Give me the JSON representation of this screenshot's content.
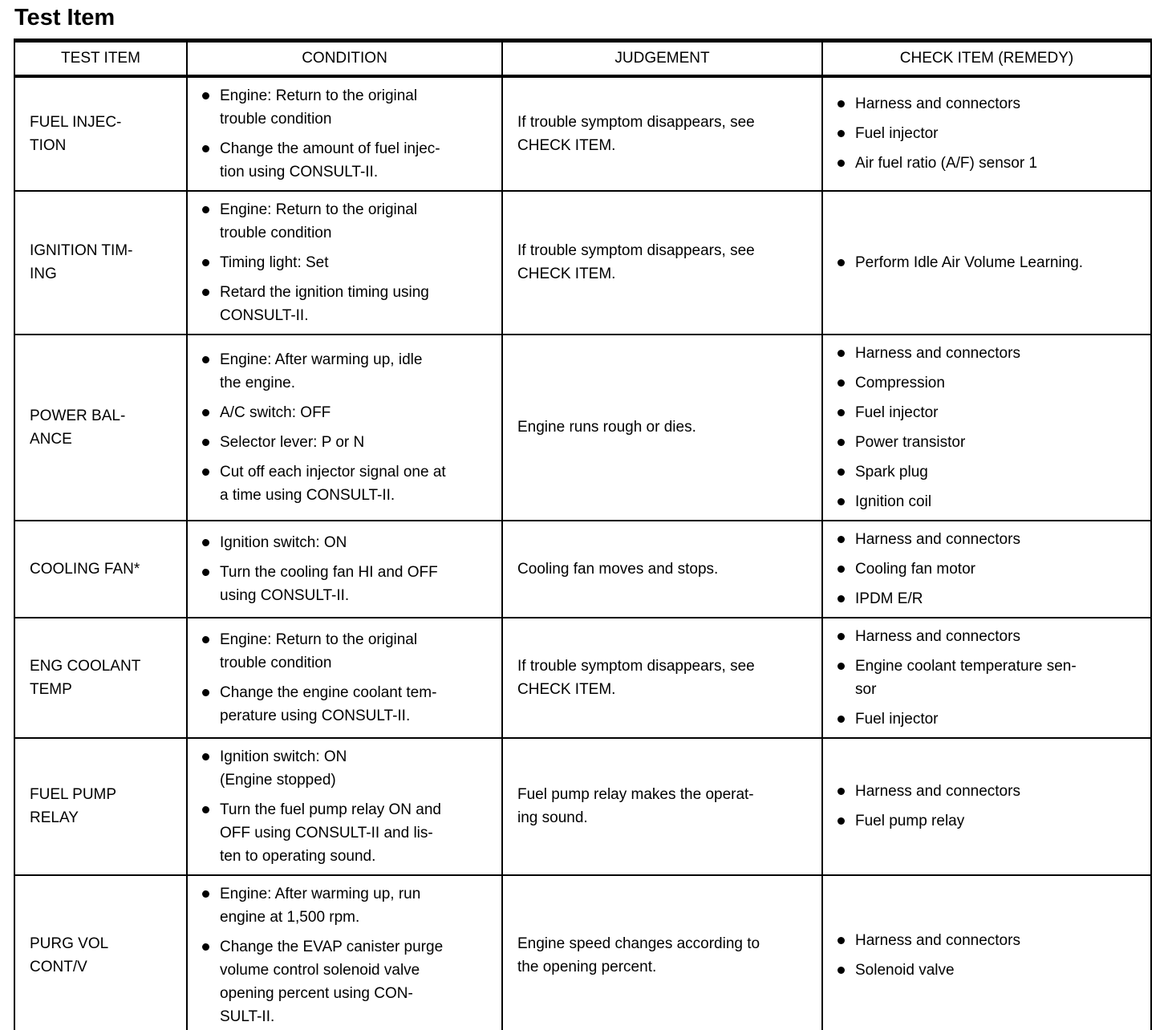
{
  "page": {
    "title": "Test Item"
  },
  "colors": {
    "text": "#000000",
    "background": "#ffffff",
    "border": "#000000"
  },
  "table": {
    "headers": [
      "TEST ITEM",
      "CONDITION",
      "JUDGEMENT",
      "CHECK ITEM (REMEDY)"
    ],
    "rows": [
      {
        "test_item": [
          "FUEL INJEC-",
          "TION"
        ],
        "conditions": [
          [
            "Engine: Return to the original",
            "trouble condition"
          ],
          [
            "Change the amount of fuel injec-",
            "tion using CONSULT-II."
          ]
        ],
        "judgement": [
          "If trouble symptom disappears, see",
          "CHECK ITEM."
        ],
        "check_items": [
          [
            "Harness and connectors"
          ],
          [
            "Fuel injector"
          ],
          [
            "Air fuel ratio (A/F) sensor 1"
          ]
        ]
      },
      {
        "test_item": [
          "IGNITION TIM-",
          "ING"
        ],
        "conditions": [
          [
            "Engine: Return to the original",
            "trouble condition"
          ],
          [
            "Timing light: Set"
          ],
          [
            "Retard the ignition timing using",
            "CONSULT-II."
          ]
        ],
        "judgement": [
          "If trouble symptom disappears, see",
          "CHECK ITEM."
        ],
        "check_items": [
          [
            "Perform Idle Air Volume Learning."
          ]
        ]
      },
      {
        "test_item": [
          "POWER BAL-",
          "ANCE"
        ],
        "conditions": [
          [
            "Engine: After warming up, idle",
            "the engine."
          ],
          [
            "A/C switch: OFF"
          ],
          [
            "Selector lever: P or N"
          ],
          [
            "Cut off each injector signal one at",
            "a time using CONSULT-II."
          ]
        ],
        "judgement": [
          "Engine runs rough or dies."
        ],
        "check_items": [
          [
            "Harness and connectors"
          ],
          [
            "Compression"
          ],
          [
            "Fuel injector"
          ],
          [
            "Power transistor"
          ],
          [
            "Spark plug"
          ],
          [
            "Ignition coil"
          ]
        ]
      },
      {
        "test_item": [
          "COOLING FAN*"
        ],
        "conditions": [
          [
            "Ignition switch: ON"
          ],
          [
            "Turn the cooling fan HI and OFF",
            "using CONSULT-II."
          ]
        ],
        "judgement": [
          "Cooling fan moves and stops."
        ],
        "check_items": [
          [
            "Harness and connectors"
          ],
          [
            "Cooling fan motor"
          ],
          [
            "IPDM E/R"
          ]
        ]
      },
      {
        "test_item": [
          "ENG COOLANT",
          "TEMP"
        ],
        "conditions": [
          [
            "Engine: Return to the original",
            "trouble condition"
          ],
          [
            "Change the engine coolant tem-",
            "perature using CONSULT-II."
          ]
        ],
        "judgement": [
          "If trouble symptom disappears, see",
          "CHECK ITEM."
        ],
        "check_items": [
          [
            "Harness and connectors"
          ],
          [
            "Engine coolant temperature sen-",
            "sor"
          ],
          [
            "Fuel injector"
          ]
        ]
      },
      {
        "test_item": [
          "FUEL PUMP",
          "RELAY"
        ],
        "conditions": [
          [
            "Ignition switch: ON",
            "(Engine stopped)"
          ],
          [
            "Turn the fuel pump relay ON and",
            "OFF using CONSULT-II and lis-",
            "ten to operating sound."
          ]
        ],
        "judgement": [
          "Fuel pump relay makes the operat-",
          "ing sound."
        ],
        "check_items": [
          [
            "Harness and connectors"
          ],
          [
            "Fuel pump relay"
          ]
        ]
      },
      {
        "test_item": [
          "PURG VOL",
          "CONT/V"
        ],
        "conditions": [
          [
            "Engine: After warming up, run",
            "engine at 1,500 rpm."
          ],
          [
            "Change the EVAP canister purge",
            "volume control solenoid valve",
            "opening percent using CON-",
            "SULT-II."
          ]
        ],
        "judgement": [
          "Engine speed changes according to",
          "the opening percent."
        ],
        "check_items": [
          [
            "Harness and connectors"
          ],
          [
            "Solenoid valve"
          ]
        ]
      }
    ]
  }
}
